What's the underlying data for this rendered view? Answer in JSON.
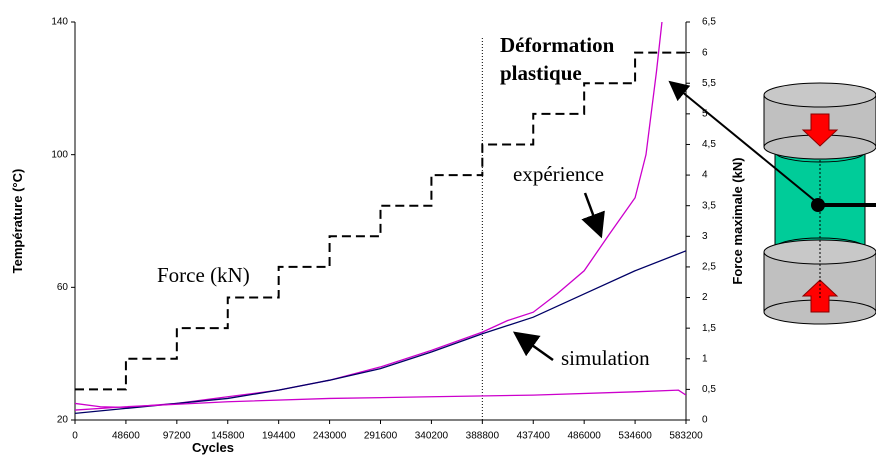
{
  "chart_data": {
    "type": "line",
    "x_label": "Cycles",
    "y_label": "Température (°C)",
    "y2_label": "Force maximale (kN)",
    "xlim": [
      0,
      583200
    ],
    "xticks": [
      0,
      48600,
      97200,
      145800,
      194400,
      243000,
      291600,
      340200,
      388800,
      437400,
      486000,
      534600,
      583200
    ],
    "ylim": [
      20,
      140
    ],
    "yticks": [
      20,
      60,
      100,
      140
    ],
    "y2lim": [
      0,
      6.5
    ],
    "y2ticks": [
      0,
      {
        "value": 0.5,
        "label": "0,5"
      },
      1,
      {
        "value": 1.5,
        "label": "1,5"
      },
      2,
      {
        "value": 2.5,
        "label": "2,5"
      },
      3,
      {
        "value": 3.5,
        "label": "3,5"
      },
      4,
      {
        "value": 4.5,
        "label": "4,5"
      },
      5,
      {
        "value": 5.5,
        "label": "5,5"
      },
      6,
      {
        "value": 6.5,
        "label": "6,5"
      }
    ],
    "grid": false,
    "vline_x": 388800,
    "annotations": [
      "Déformation",
      "plastique"
    ],
    "series": [
      {
        "name": "Force (kN)",
        "color": "#000000",
        "dashed": true,
        "axis": "y2",
        "x": [
          0,
          48600,
          48600,
          97200,
          97200,
          145800,
          145800,
          194400,
          194400,
          243000,
          243000,
          291600,
          291600,
          340200,
          340200,
          388800,
          388800,
          437400,
          437400,
          486000,
          486000,
          534600,
          534600,
          583200
        ],
        "values": [
          0.5,
          0.5,
          1,
          1,
          1.5,
          1.5,
          2,
          2,
          2.5,
          2.5,
          3,
          3,
          3.5,
          3.5,
          4,
          4,
          4.5,
          4.5,
          5,
          5,
          5.5,
          5.5,
          6,
          6
        ]
      },
      {
        "name": "expérience",
        "color": "#cc00cc",
        "dashed": false,
        "x": [
          0,
          24300,
          48600,
          97200,
          145800,
          194400,
          243000,
          291600,
          340200,
          388800,
          413000,
          437400,
          460000,
          486000,
          510000,
          534600,
          545000,
          555000,
          562000
        ],
        "values": [
          25,
          24,
          23.8,
          25,
          27,
          29,
          32,
          36,
          41,
          46.5,
          50,
          52.5,
          58,
          65,
          76,
          87,
          100,
          125,
          145
        ]
      },
      {
        "name": "simulation",
        "color": "#000066",
        "dashed": false,
        "x": [
          0,
          48600,
          97200,
          145800,
          194400,
          243000,
          291600,
          340200,
          388800,
          437400,
          486000,
          534600,
          583200
        ],
        "values": [
          22,
          23.5,
          25,
          26.5,
          29,
          32,
          35.5,
          40.5,
          46,
          51,
          58,
          65,
          71
        ]
      },
      {
        "color": "#cc00cc",
        "dashed": false,
        "x": [
          0,
          48600,
          145800,
          243000,
          340200,
          437400,
          534600,
          576000,
          583200
        ],
        "values": [
          23,
          24,
          25.5,
          26.5,
          27,
          27.5,
          28.5,
          29,
          27.5
        ]
      }
    ]
  }
}
